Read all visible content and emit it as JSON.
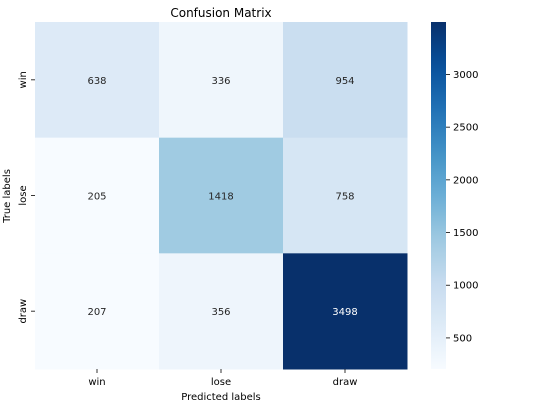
{
  "chart_data": {
    "type": "heatmap",
    "title": "Confusion Matrix",
    "xlabel": "Predicted labels",
    "ylabel": "True labels",
    "x_categories": [
      "win",
      "lose",
      "draw"
    ],
    "y_categories": [
      "win",
      "lose",
      "draw"
    ],
    "values": [
      [
        638,
        336,
        954
      ],
      [
        205,
        1418,
        758
      ],
      [
        207,
        356,
        3498
      ]
    ],
    "colormap": "Blues",
    "color_range": [
      205,
      3498
    ],
    "colorbar_ticks": [
      500,
      1000,
      1500,
      2000,
      2500,
      3000
    ],
    "colors": {
      "annotation_dark": "#262626",
      "annotation_light": "#ffffff",
      "axis": "#000000"
    }
  }
}
